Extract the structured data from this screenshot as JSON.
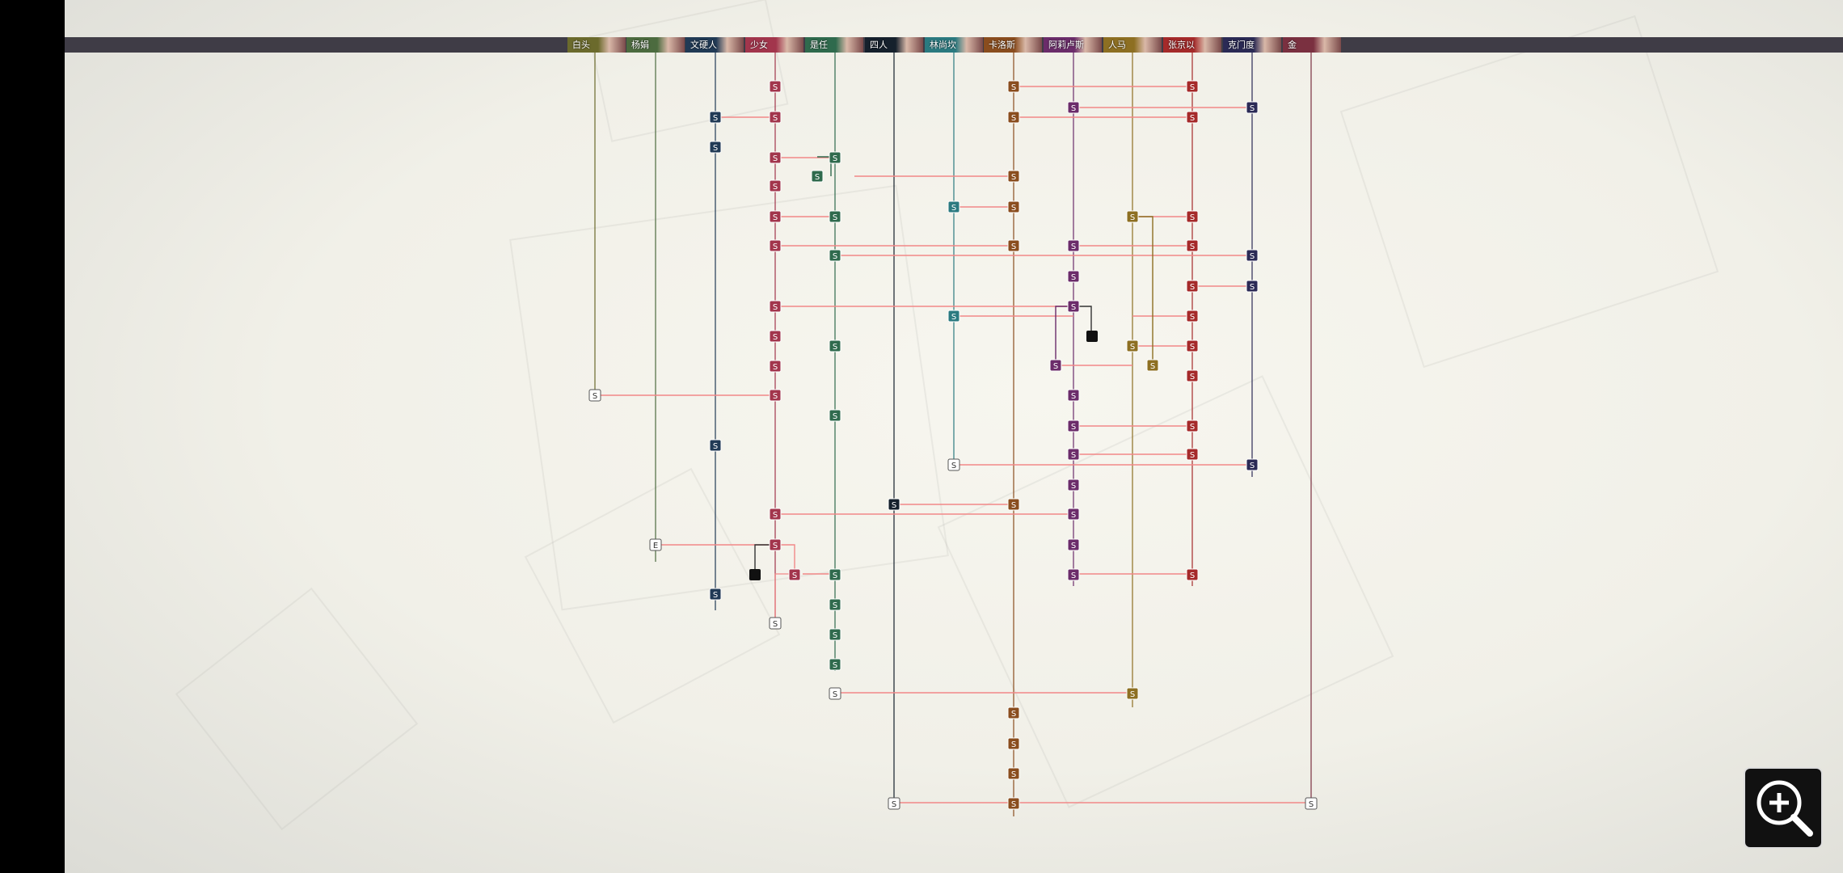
{
  "tabs": [
    {
      "label": "白头",
      "color": "#6b6a2c"
    },
    {
      "label": "杨娟",
      "color": "#4c6b3f"
    },
    {
      "label": "文硬人",
      "color": "#213a55"
    },
    {
      "label": "少女",
      "color": "#a2354c"
    },
    {
      "label": "是任",
      "color": "#2f6a4d"
    },
    {
      "label": "四人",
      "color": "#15202c"
    },
    {
      "label": "林尚坎",
      "color": "#2b7a80"
    },
    {
      "label": "卡洛斯",
      "color": "#8a4d1e"
    },
    {
      "label": "阿莉卢斯",
      "color": "#6b2c6a"
    },
    {
      "label": "人马",
      "color": "#8d6f22"
    },
    {
      "label": "张京以",
      "color": "#a52a2a"
    },
    {
      "label": "克门度",
      "color": "#2b2a55"
    },
    {
      "label": "金",
      "color": "#7a3040"
    }
  ],
  "node_label": "S",
  "end_label": "E",
  "zoom": {
    "icon": "zoom-in-icon"
  },
  "colors": {
    "route": "#f28888",
    "header": "#3f3c46"
  }
}
